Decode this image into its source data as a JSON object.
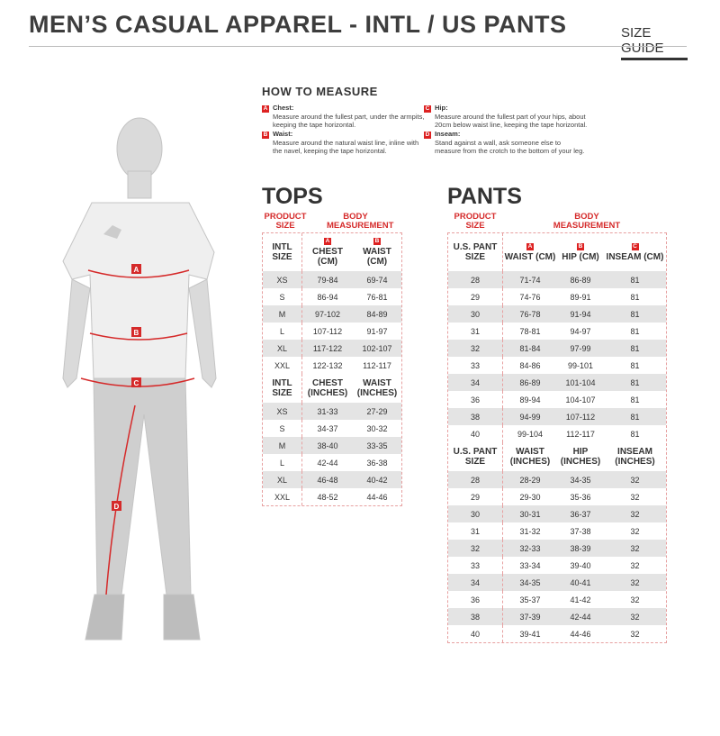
{
  "header": {
    "title": "MEN’S CASUAL APPAREL - INTL / US PANTS",
    "size_guide": "SIZE GUIDE"
  },
  "how_to": {
    "title": "HOW TO MEASURE",
    "items": [
      {
        "letter": "A",
        "label": "Chest:",
        "text": "Measure around the fullest part, under the armpits, keeping the tape horizontal."
      },
      {
        "letter": "B",
        "label": "Waist:",
        "text": "Measure around the natural waist line, inline with the navel, keeping the tape horizontal."
      },
      {
        "letter": "C",
        "label": "Hip:",
        "text": "Measure around the fullest part of your hips, about 20cm below waist line, keeping the tape horizontal."
      },
      {
        "letter": "D",
        "label": "Inseam:",
        "text": "Stand against a wall, ask someone else to measure from the crotch to the bottom of your leg."
      }
    ]
  },
  "accent": "#d52a2a",
  "figure": {
    "labels": [
      "A",
      "B",
      "C",
      "D"
    ]
  },
  "tops": {
    "title": "TOPS",
    "product_size": "PRODUCT SIZE",
    "body_measurement": "BODY MEASUREMENT",
    "letters": [
      "A",
      "B"
    ],
    "cm": {
      "headers": [
        "INTL SIZE",
        "CHEST (CM)",
        "WAIST (CM)"
      ],
      "rows": [
        [
          "XS",
          "79-84",
          "69-74"
        ],
        [
          "S",
          "86-94",
          "76-81"
        ],
        [
          "M",
          "97-102",
          "84-89"
        ],
        [
          "L",
          "107-112",
          "91-97"
        ],
        [
          "XL",
          "117-122",
          "102-107"
        ],
        [
          "XXL",
          "122-132",
          "112-117"
        ]
      ]
    },
    "in": {
      "headers": [
        "INTL SIZE",
        "CHEST (INCHES)",
        "WAIST (INCHES)"
      ],
      "rows": [
        [
          "XS",
          "31-33",
          "27-29"
        ],
        [
          "S",
          "34-37",
          "30-32"
        ],
        [
          "M",
          "38-40",
          "33-35"
        ],
        [
          "L",
          "42-44",
          "36-38"
        ],
        [
          "XL",
          "46-48",
          "40-42"
        ],
        [
          "XXL",
          "48-52",
          "44-46"
        ]
      ]
    }
  },
  "pants": {
    "title": "PANTS",
    "product_size": "PRODUCT SIZE",
    "body_measurement": "BODY MEASUREMENT",
    "letters": [
      "A",
      "B",
      "C"
    ],
    "cm": {
      "headers": [
        "U.S. PANT SIZE",
        "WAIST (CM)",
        "HIP (CM)",
        "INSEAM (CM)"
      ],
      "rows": [
        [
          "28",
          "71-74",
          "86-89",
          "81"
        ],
        [
          "29",
          "74-76",
          "89-91",
          "81"
        ],
        [
          "30",
          "76-78",
          "91-94",
          "81"
        ],
        [
          "31",
          "78-81",
          "94-97",
          "81"
        ],
        [
          "32",
          "81-84",
          "97-99",
          "81"
        ],
        [
          "33",
          "84-86",
          "99-101",
          "81"
        ],
        [
          "34",
          "86-89",
          "101-104",
          "81"
        ],
        [
          "36",
          "89-94",
          "104-107",
          "81"
        ],
        [
          "38",
          "94-99",
          "107-112",
          "81"
        ],
        [
          "40",
          "99-104",
          "112-117",
          "81"
        ]
      ]
    },
    "in": {
      "headers": [
        "U.S. PANT SIZE",
        "WAIST (INCHES)",
        "HIP (INCHES)",
        "INSEAM (INCHES)"
      ],
      "rows": [
        [
          "28",
          "28-29",
          "34-35",
          "32"
        ],
        [
          "29",
          "29-30",
          "35-36",
          "32"
        ],
        [
          "30",
          "30-31",
          "36-37",
          "32"
        ],
        [
          "31",
          "31-32",
          "37-38",
          "32"
        ],
        [
          "32",
          "32-33",
          "38-39",
          "32"
        ],
        [
          "33",
          "33-34",
          "39-40",
          "32"
        ],
        [
          "34",
          "34-35",
          "40-41",
          "32"
        ],
        [
          "36",
          "35-37",
          "41-42",
          "32"
        ],
        [
          "38",
          "37-39",
          "42-44",
          "32"
        ],
        [
          "40",
          "39-41",
          "44-46",
          "32"
        ]
      ]
    }
  }
}
